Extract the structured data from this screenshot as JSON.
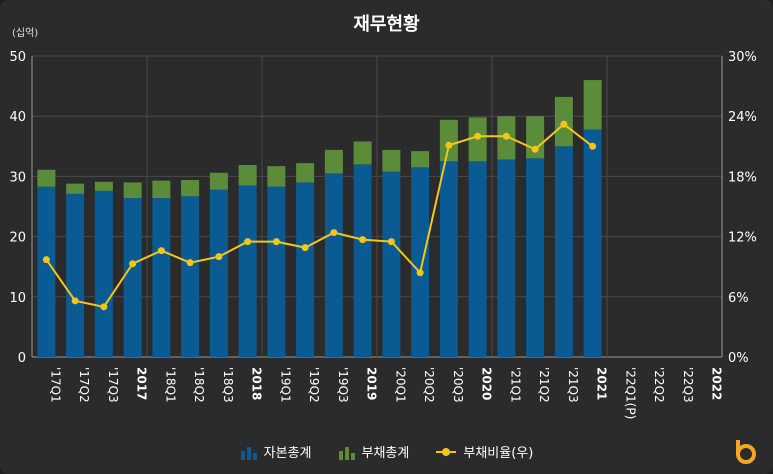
{
  "title": "재무현황",
  "unit_label": "(십억)",
  "legend": {
    "equity": "자본총계",
    "liabilities": "부채총계",
    "ratio": "부채비율(우)"
  },
  "colors": {
    "equity": "#0a5a94",
    "liabilities": "#5b8c3a",
    "ratio": "#f5c518",
    "grid": "#4a4a4a",
    "axis": "#ffffff",
    "background": "#2b2b2b",
    "logo": "#f5a623"
  },
  "chart_data": {
    "type": "bar",
    "title": "재무현황",
    "categories": [
      "'17Q1",
      "'17Q2",
      "'17Q3",
      "2017",
      "'18Q1",
      "'18Q2",
      "'18Q3",
      "2018",
      "'19Q1",
      "'19Q2",
      "'19Q3",
      "2019",
      "'20Q1",
      "'20Q2",
      "'20Q3",
      "2020",
      "'21Q1",
      "'21Q2",
      "'21Q3",
      "2021",
      "'22Q1(P)",
      "'22Q2",
      "'22Q3",
      "2022"
    ],
    "bold_categories": [
      "2017",
      "2018",
      "2019",
      "2020",
      "2021",
      "2022"
    ],
    "series": [
      {
        "name": "자본총계",
        "type": "bar",
        "stack": "total",
        "values": [
          28.3,
          27.1,
          27.6,
          26.4,
          26.4,
          26.7,
          27.8,
          28.5,
          28.3,
          29.0,
          30.5,
          32.0,
          30.8,
          31.5,
          32.5,
          32.5,
          32.8,
          33.0,
          35.0,
          37.8,
          null,
          null,
          null,
          null
        ]
      },
      {
        "name": "부채총계",
        "type": "bar",
        "stack": "total",
        "values": [
          2.8,
          1.7,
          1.5,
          2.6,
          2.9,
          2.7,
          2.8,
          3.4,
          3.4,
          3.2,
          3.9,
          3.8,
          3.6,
          2.7,
          6.9,
          7.3,
          7.2,
          7.0,
          8.2,
          8.2,
          null,
          null,
          null,
          null
        ]
      },
      {
        "name": "부채비율(우)",
        "type": "line",
        "axis": "right",
        "values": [
          9.7,
          5.6,
          5.0,
          9.3,
          10.6,
          9.4,
          10.0,
          11.5,
          11.5,
          10.9,
          12.4,
          11.7,
          11.5,
          8.4,
          21.1,
          22.0,
          22.0,
          20.7,
          23.2,
          21.0,
          null,
          null,
          null,
          null
        ]
      }
    ],
    "y_left": {
      "min": 0,
      "max": 50,
      "ticks": [
        0,
        10,
        20,
        30,
        40,
        50
      ]
    },
    "y_right": {
      "min": 0,
      "max": 30,
      "ticks": [
        "0%",
        "6%",
        "12%",
        "18%",
        "24%",
        "30%"
      ]
    },
    "grid": true,
    "legend_position": "bottom"
  }
}
